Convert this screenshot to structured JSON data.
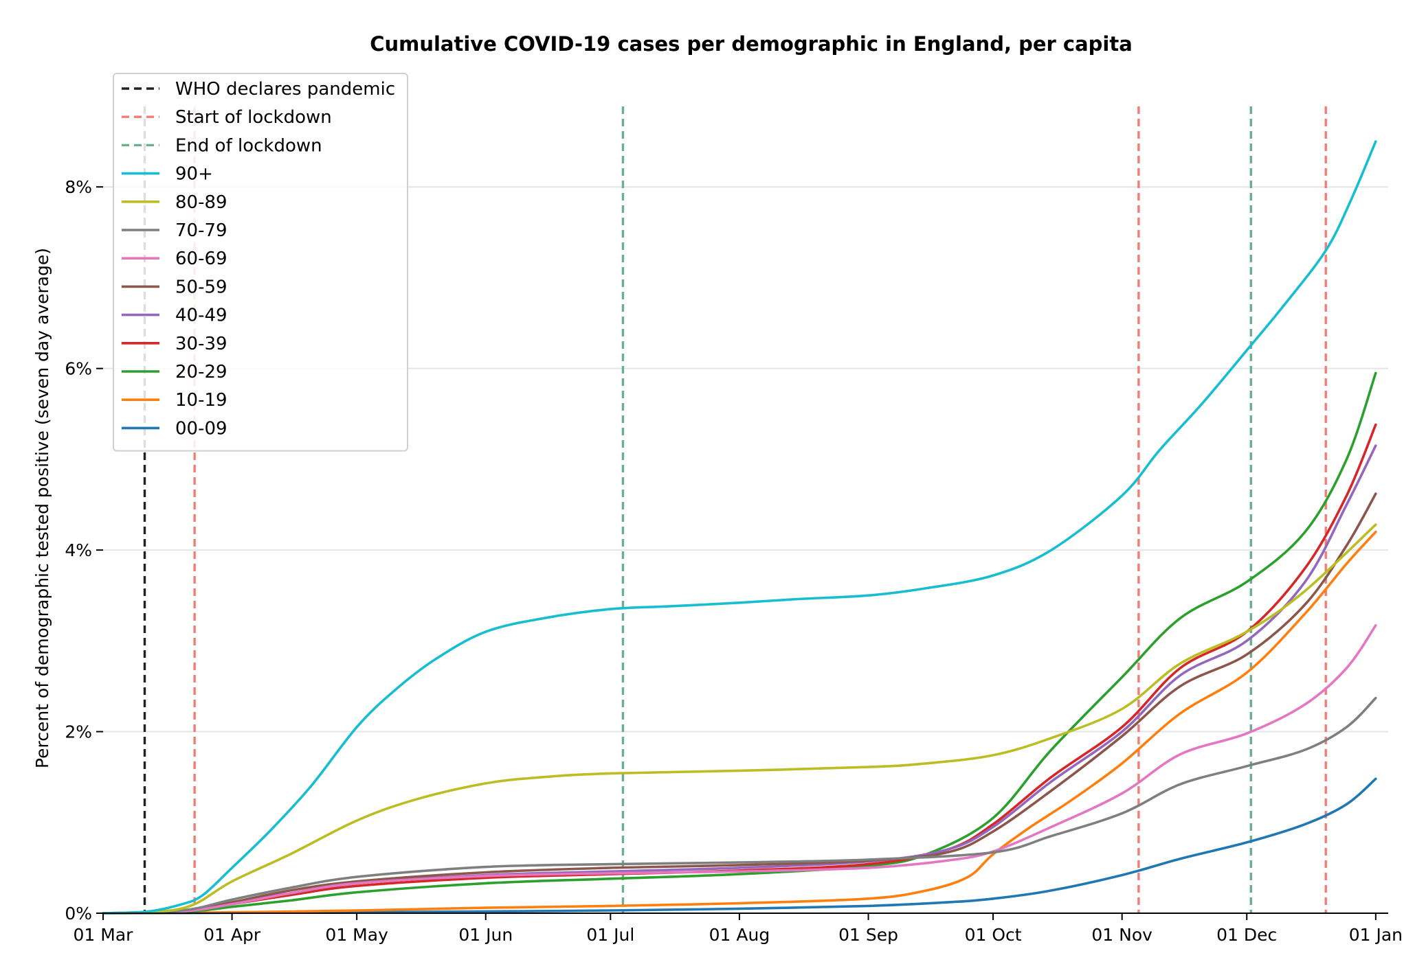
{
  "chart_data": {
    "type": "line",
    "title": "Cumulative COVID-19 cases per demographic in England, per capita",
    "xlabel": "",
    "ylabel": "Percent of demographic tested positive (seven day average)",
    "x_range": [
      "2020-03-01",
      "2021-01-04"
    ],
    "ylim": [
      0,
      9
    ],
    "x_ticks": [
      {
        "date": "2020-03-01",
        "label": "01 Mar"
      },
      {
        "date": "2020-04-01",
        "label": "01 Apr"
      },
      {
        "date": "2020-05-01",
        "label": "01 May"
      },
      {
        "date": "2020-06-01",
        "label": "01 Jun"
      },
      {
        "date": "2020-07-01",
        "label": "01 Jul"
      },
      {
        "date": "2020-08-01",
        "label": "01 Aug"
      },
      {
        "date": "2020-09-01",
        "label": "01 Sep"
      },
      {
        "date": "2020-10-01",
        "label": "01 Oct"
      },
      {
        "date": "2020-11-01",
        "label": "01 Nov"
      },
      {
        "date": "2020-12-01",
        "label": "01 Dec"
      },
      {
        "date": "2021-01-01",
        "label": "01 Jan"
      }
    ],
    "y_ticks": [
      {
        "value": 0,
        "label": "0%"
      },
      {
        "value": 2,
        "label": "2%"
      },
      {
        "value": 4,
        "label": "4%"
      },
      {
        "value": 6,
        "label": "6%"
      },
      {
        "value": 8,
        "label": "8%"
      }
    ],
    "grid": "horizontal",
    "legend_position": "top-left",
    "events": [
      {
        "name": "WHO declares pandemic",
        "color": "#222222",
        "dates": [
          "2020-03-11"
        ]
      },
      {
        "name": "Start of lockdown",
        "color": "#f47c74",
        "dates": [
          "2020-03-23",
          "2020-11-05",
          "2020-12-20"
        ]
      },
      {
        "name": "End of lockdown",
        "color": "#6aaf8e",
        "dates": [
          "2020-07-04",
          "2020-12-02"
        ]
      }
    ],
    "series": [
      {
        "name": "90+",
        "color": "#17becf",
        "points": [
          [
            "2020-03-01",
            0
          ],
          [
            "2020-03-12",
            0.02
          ],
          [
            "2020-03-20",
            0.1
          ],
          [
            "2020-03-25",
            0.2
          ],
          [
            "2020-04-01",
            0.5
          ],
          [
            "2020-04-10",
            0.9
          ],
          [
            "2020-04-20",
            1.4
          ],
          [
            "2020-05-01",
            2.05
          ],
          [
            "2020-05-10",
            2.45
          ],
          [
            "2020-05-20",
            2.8
          ],
          [
            "2020-06-01",
            3.1
          ],
          [
            "2020-06-15",
            3.25
          ],
          [
            "2020-07-01",
            3.35
          ],
          [
            "2020-07-15",
            3.38
          ],
          [
            "2020-08-01",
            3.42
          ],
          [
            "2020-08-15",
            3.46
          ],
          [
            "2020-09-01",
            3.5
          ],
          [
            "2020-09-15",
            3.58
          ],
          [
            "2020-10-01",
            3.72
          ],
          [
            "2020-10-15",
            4.0
          ],
          [
            "2020-11-01",
            4.6
          ],
          [
            "2020-11-10",
            5.1
          ],
          [
            "2020-11-20",
            5.6
          ],
          [
            "2020-12-01",
            6.2
          ],
          [
            "2020-12-10",
            6.7
          ],
          [
            "2020-12-20",
            7.3
          ],
          [
            "2020-12-26",
            7.85
          ],
          [
            "2021-01-01",
            8.5
          ]
        ]
      },
      {
        "name": "80-89",
        "color": "#bcbd22",
        "points": [
          [
            "2020-03-01",
            0
          ],
          [
            "2020-03-15",
            0.02
          ],
          [
            "2020-03-23",
            0.1
          ],
          [
            "2020-04-01",
            0.35
          ],
          [
            "2020-04-15",
            0.65
          ],
          [
            "2020-05-01",
            1.02
          ],
          [
            "2020-05-15",
            1.25
          ],
          [
            "2020-06-01",
            1.43
          ],
          [
            "2020-06-15",
            1.5
          ],
          [
            "2020-07-01",
            1.54
          ],
          [
            "2020-08-01",
            1.57
          ],
          [
            "2020-09-01",
            1.61
          ],
          [
            "2020-09-15",
            1.65
          ],
          [
            "2020-10-01",
            1.74
          ],
          [
            "2020-10-15",
            1.93
          ],
          [
            "2020-11-01",
            2.25
          ],
          [
            "2020-11-15",
            2.75
          ],
          [
            "2020-12-01",
            3.1
          ],
          [
            "2020-12-15",
            3.55
          ],
          [
            "2021-01-01",
            4.28
          ]
        ]
      },
      {
        "name": "70-79",
        "color": "#7f7f7f",
        "points": [
          [
            "2020-03-01",
            0
          ],
          [
            "2020-03-20",
            0.03
          ],
          [
            "2020-04-01",
            0.15
          ],
          [
            "2020-04-15",
            0.28
          ],
          [
            "2020-05-01",
            0.4
          ],
          [
            "2020-06-01",
            0.51
          ],
          [
            "2020-07-01",
            0.54
          ],
          [
            "2020-08-01",
            0.56
          ],
          [
            "2020-09-01",
            0.59
          ],
          [
            "2020-10-01",
            0.67
          ],
          [
            "2020-10-15",
            0.85
          ],
          [
            "2020-11-01",
            1.1
          ],
          [
            "2020-11-15",
            1.42
          ],
          [
            "2020-12-01",
            1.62
          ],
          [
            "2020-12-15",
            1.8
          ],
          [
            "2020-12-25",
            2.05
          ],
          [
            "2021-01-01",
            2.37
          ]
        ]
      },
      {
        "name": "60-69",
        "color": "#e377c2",
        "points": [
          [
            "2020-03-01",
            0
          ],
          [
            "2020-03-20",
            0.02
          ],
          [
            "2020-04-01",
            0.1
          ],
          [
            "2020-04-15",
            0.22
          ],
          [
            "2020-05-01",
            0.33
          ],
          [
            "2020-06-01",
            0.41
          ],
          [
            "2020-07-01",
            0.44
          ],
          [
            "2020-08-01",
            0.46
          ],
          [
            "2020-09-01",
            0.5
          ],
          [
            "2020-09-20",
            0.58
          ],
          [
            "2020-10-01",
            0.68
          ],
          [
            "2020-10-15",
            0.95
          ],
          [
            "2020-11-01",
            1.32
          ],
          [
            "2020-11-15",
            1.75
          ],
          [
            "2020-12-01",
            1.98
          ],
          [
            "2020-12-15",
            2.3
          ],
          [
            "2020-12-25",
            2.7
          ],
          [
            "2021-01-01",
            3.17
          ]
        ]
      },
      {
        "name": "50-59",
        "color": "#8c564b",
        "points": [
          [
            "2020-03-01",
            0
          ],
          [
            "2020-03-20",
            0.02
          ],
          [
            "2020-04-01",
            0.12
          ],
          [
            "2020-04-15",
            0.25
          ],
          [
            "2020-05-01",
            0.35
          ],
          [
            "2020-06-01",
            0.45
          ],
          [
            "2020-07-01",
            0.5
          ],
          [
            "2020-08-01",
            0.53
          ],
          [
            "2020-09-01",
            0.58
          ],
          [
            "2020-09-20",
            0.67
          ],
          [
            "2020-10-01",
            0.9
          ],
          [
            "2020-10-15",
            1.35
          ],
          [
            "2020-11-01",
            1.95
          ],
          [
            "2020-11-15",
            2.5
          ],
          [
            "2020-12-01",
            2.85
          ],
          [
            "2020-12-15",
            3.4
          ],
          [
            "2020-12-25",
            4.05
          ],
          [
            "2021-01-01",
            4.62
          ]
        ]
      },
      {
        "name": "40-49",
        "color": "#9467bd",
        "points": [
          [
            "2020-03-01",
            0
          ],
          [
            "2020-03-20",
            0.02
          ],
          [
            "2020-04-01",
            0.12
          ],
          [
            "2020-04-15",
            0.22
          ],
          [
            "2020-05-01",
            0.33
          ],
          [
            "2020-06-01",
            0.42
          ],
          [
            "2020-07-01",
            0.46
          ],
          [
            "2020-08-01",
            0.5
          ],
          [
            "2020-09-01",
            0.57
          ],
          [
            "2020-09-20",
            0.7
          ],
          [
            "2020-10-01",
            0.95
          ],
          [
            "2020-10-15",
            1.45
          ],
          [
            "2020-11-01",
            2.0
          ],
          [
            "2020-11-15",
            2.62
          ],
          [
            "2020-12-01",
            3.0
          ],
          [
            "2020-12-15",
            3.65
          ],
          [
            "2020-12-25",
            4.5
          ],
          [
            "2021-01-01",
            5.15
          ]
        ]
      },
      {
        "name": "30-39",
        "color": "#d62728",
        "points": [
          [
            "2020-03-01",
            0
          ],
          [
            "2020-03-20",
            0.02
          ],
          [
            "2020-04-01",
            0.1
          ],
          [
            "2020-04-15",
            0.2
          ],
          [
            "2020-05-01",
            0.3
          ],
          [
            "2020-06-01",
            0.39
          ],
          [
            "2020-07-01",
            0.43
          ],
          [
            "2020-08-01",
            0.47
          ],
          [
            "2020-09-01",
            0.54
          ],
          [
            "2020-09-20",
            0.7
          ],
          [
            "2020-10-01",
            0.98
          ],
          [
            "2020-10-15",
            1.5
          ],
          [
            "2020-11-01",
            2.05
          ],
          [
            "2020-11-15",
            2.7
          ],
          [
            "2020-12-01",
            3.1
          ],
          [
            "2020-12-15",
            3.8
          ],
          [
            "2020-12-25",
            4.6
          ],
          [
            "2021-01-01",
            5.38
          ]
        ]
      },
      {
        "name": "20-29",
        "color": "#2ca02c",
        "points": [
          [
            "2020-03-01",
            0
          ],
          [
            "2020-03-20",
            0.01
          ],
          [
            "2020-04-01",
            0.07
          ],
          [
            "2020-04-15",
            0.14
          ],
          [
            "2020-05-01",
            0.23
          ],
          [
            "2020-06-01",
            0.33
          ],
          [
            "2020-07-01",
            0.38
          ],
          [
            "2020-08-01",
            0.43
          ],
          [
            "2020-09-01",
            0.52
          ],
          [
            "2020-09-15",
            0.65
          ],
          [
            "2020-10-01",
            1.05
          ],
          [
            "2020-10-15",
            1.8
          ],
          [
            "2020-11-01",
            2.6
          ],
          [
            "2020-11-15",
            3.25
          ],
          [
            "2020-12-01",
            3.65
          ],
          [
            "2020-12-15",
            4.2
          ],
          [
            "2020-12-25",
            5.0
          ],
          [
            "2021-01-01",
            5.95
          ]
        ]
      },
      {
        "name": "10-19",
        "color": "#ff7f0e",
        "points": [
          [
            "2020-03-01",
            0
          ],
          [
            "2020-04-01",
            0.01
          ],
          [
            "2020-05-01",
            0.03
          ],
          [
            "2020-06-01",
            0.06
          ],
          [
            "2020-07-01",
            0.08
          ],
          [
            "2020-08-01",
            0.11
          ],
          [
            "2020-09-01",
            0.16
          ],
          [
            "2020-09-15",
            0.25
          ],
          [
            "2020-09-25",
            0.4
          ],
          [
            "2020-10-01",
            0.65
          ],
          [
            "2020-10-10",
            0.95
          ],
          [
            "2020-10-20",
            1.25
          ],
          [
            "2020-11-01",
            1.65
          ],
          [
            "2020-11-15",
            2.2
          ],
          [
            "2020-12-01",
            2.65
          ],
          [
            "2020-12-15",
            3.3
          ],
          [
            "2020-12-25",
            3.85
          ],
          [
            "2021-01-01",
            4.2
          ]
        ]
      },
      {
        "name": "00-09",
        "color": "#1f77b4",
        "points": [
          [
            "2020-03-01",
            0
          ],
          [
            "2020-05-01",
            0.01
          ],
          [
            "2020-06-01",
            0.02
          ],
          [
            "2020-07-01",
            0.03
          ],
          [
            "2020-08-01",
            0.05
          ],
          [
            "2020-09-01",
            0.08
          ],
          [
            "2020-09-20",
            0.12
          ],
          [
            "2020-10-01",
            0.16
          ],
          [
            "2020-10-15",
            0.25
          ],
          [
            "2020-11-01",
            0.42
          ],
          [
            "2020-11-15",
            0.6
          ],
          [
            "2020-12-01",
            0.78
          ],
          [
            "2020-12-15",
            0.98
          ],
          [
            "2020-12-25",
            1.2
          ],
          [
            "2021-01-01",
            1.48
          ]
        ]
      }
    ]
  }
}
